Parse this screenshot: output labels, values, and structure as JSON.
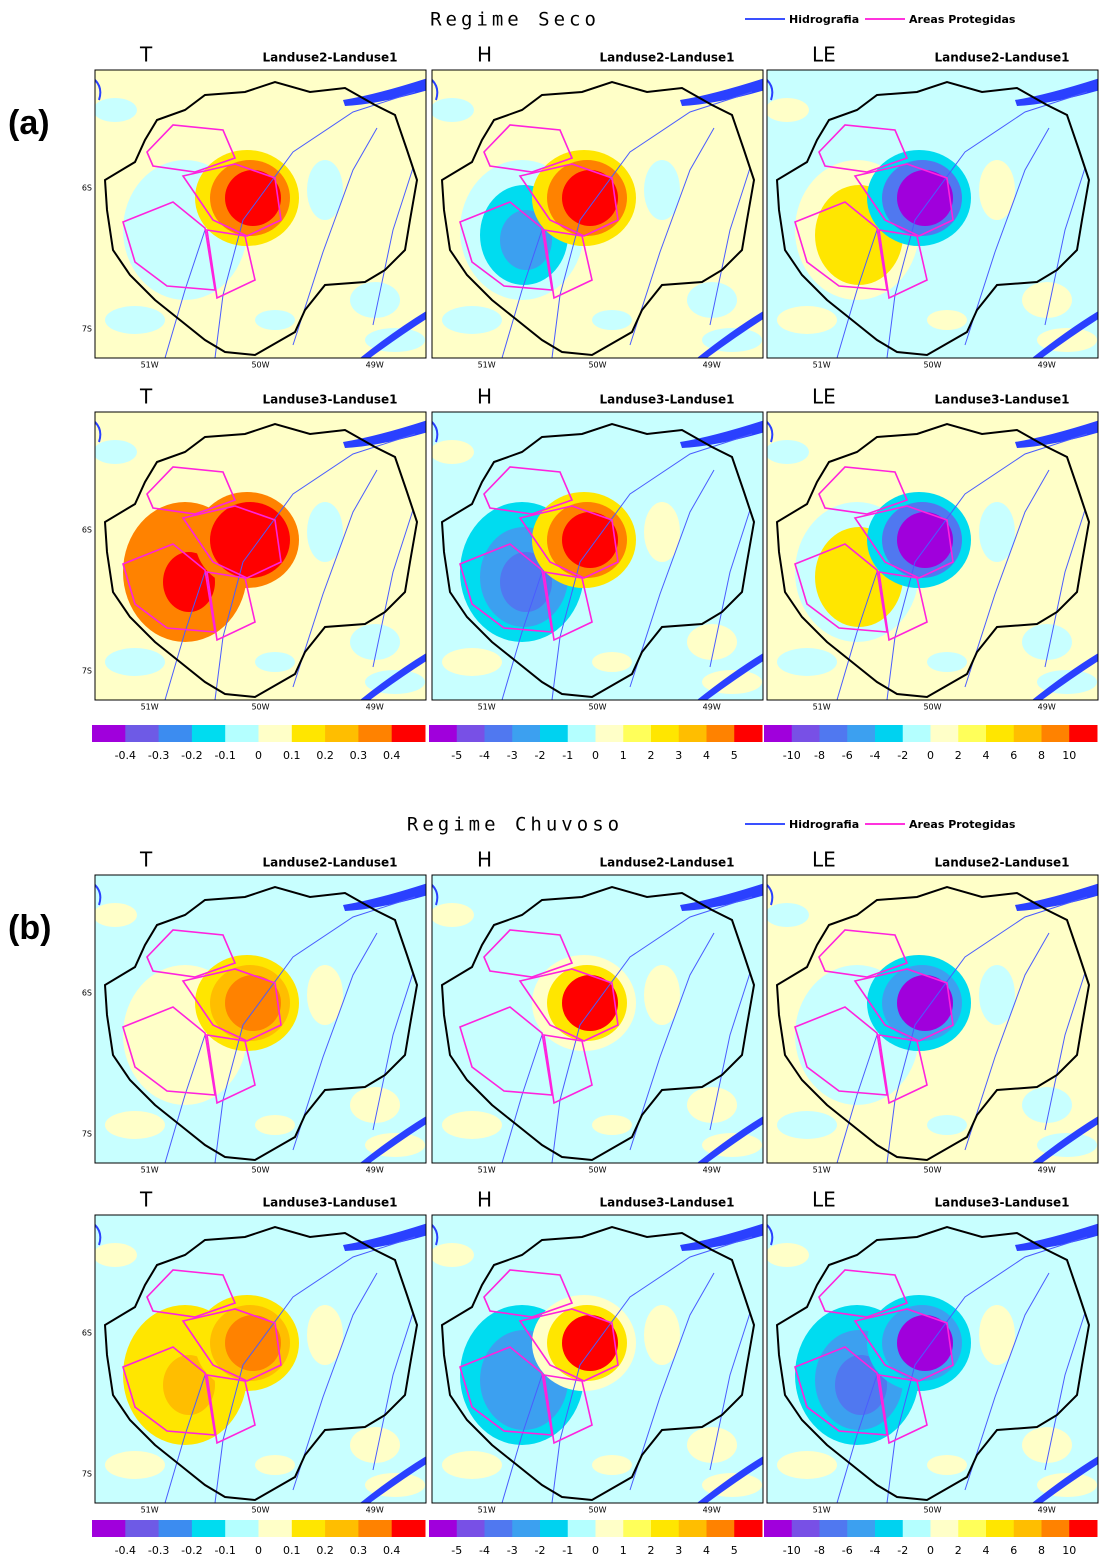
{
  "legend": [
    {
      "label": "Hidrografia",
      "color": "#3a50ff"
    },
    {
      "label": "Areas Protegidas",
      "color": "#ff33dd"
    }
  ],
  "sections": [
    {
      "label": "(a)",
      "title": "Regime Seco",
      "rows": [
        {
          "panels": [
            {
              "variable": "T",
              "subtitle": "Landuse2-Landuse1"
            },
            {
              "variable": "H",
              "subtitle": "Landuse2-Landuse1"
            },
            {
              "variable": "LE",
              "subtitle": "Landuse2-Landuse1"
            }
          ]
        },
        {
          "panels": [
            {
              "variable": "T",
              "subtitle": "Landuse3-Landuse1"
            },
            {
              "variable": "H",
              "subtitle": "Landuse3-Landuse1"
            },
            {
              "variable": "LE",
              "subtitle": "Landuse3-Landuse1"
            }
          ]
        }
      ]
    },
    {
      "label": "(b)",
      "title": "Regime Chuvoso",
      "rows": [
        {
          "panels": [
            {
              "variable": "T",
              "subtitle": "Landuse2-Landuse1"
            },
            {
              "variable": "H",
              "subtitle": "Landuse2-Landuse1"
            },
            {
              "variable": "LE",
              "subtitle": "Landuse2-Landuse1"
            }
          ]
        },
        {
          "panels": [
            {
              "variable": "T",
              "subtitle": "Landuse3-Landuse1"
            },
            {
              "variable": "H",
              "subtitle": "Landuse3-Landuse1"
            },
            {
              "variable": "LE",
              "subtitle": "Landuse3-Landuse1"
            }
          ]
        }
      ]
    }
  ],
  "lat_ticks": [
    "6S",
    "7S"
  ],
  "lon_ticks": [
    "51W",
    "50W",
    "49W"
  ],
  "colorbars": [
    {
      "labels": [
        "-0.4",
        "-0.3",
        "-0.2",
        "-0.1",
        "0",
        "0.1",
        "0.2",
        "0.3",
        "0.4"
      ],
      "colors": [
        "#a000dc",
        "#6e5ae6",
        "#3c8cf0",
        "#00dcf0",
        "#b4ffff",
        "#ffffc8",
        "#ffe600",
        "#ffbe00",
        "#ff8200",
        "#ff0000"
      ]
    },
    {
      "labels": [
        "-5",
        "-4",
        "-3",
        "-2",
        "-1",
        "0",
        "1",
        "2",
        "3",
        "4",
        "5"
      ],
      "colors": [
        "#a000dc",
        "#7850e6",
        "#5078f0",
        "#3ca0f0",
        "#00d2f0",
        "#b4ffff",
        "#ffffc8",
        "#ffff5a",
        "#ffe600",
        "#ffbe00",
        "#ff8200",
        "#ff0000"
      ]
    },
    {
      "labels": [
        "-10",
        "-8",
        "-6",
        "-4",
        "-2",
        "0",
        "2",
        "4",
        "6",
        "8",
        "10"
      ],
      "colors": [
        "#a000dc",
        "#7850e6",
        "#5078f0",
        "#3ca0f0",
        "#00d2f0",
        "#b4ffff",
        "#ffffc8",
        "#ffff5a",
        "#ffe600",
        "#ffbe00",
        "#ff8200",
        "#ff0000"
      ]
    }
  ]
}
